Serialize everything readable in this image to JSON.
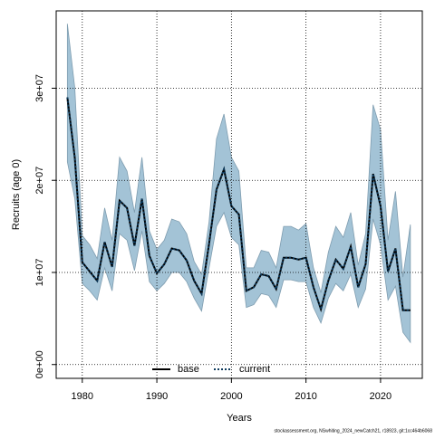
{
  "chart_data": {
    "type": "line",
    "xlabel": "Years",
    "ylabel": "Recruits (age 0)",
    "footnote": "stockassessment.org, NSwhiting_2024_newCatch21, r18923, git:1cc464b6068",
    "x": [
      1978,
      1979,
      1980,
      1981,
      1982,
      1983,
      1984,
      1985,
      1986,
      1987,
      1988,
      1989,
      1990,
      1991,
      1992,
      1993,
      1994,
      1995,
      1996,
      1997,
      1998,
      1999,
      2000,
      2001,
      2002,
      2003,
      2004,
      2005,
      2006,
      2007,
      2008,
      2009,
      2010,
      2011,
      2012,
      2013,
      2014,
      2015,
      2016,
      2017,
      2018,
      2019,
      2020,
      2021,
      2022,
      2023,
      2024
    ],
    "series": [
      {
        "name": "base",
        "color": "#000000",
        "dash": false,
        "values": [
          29000000.0,
          22400000.0,
          11100000.0,
          10100000.0,
          9100000.0,
          13300000.0,
          10600000.0,
          17800000.0,
          17000000.0,
          12900000.0,
          18000000.0,
          11800000.0,
          9900000.0,
          10900000.0,
          12600000.0,
          12400000.0,
          11300000.0,
          9100000.0,
          7700000.0,
          13100000.0,
          19000000.0,
          21200000.0,
          17200000.0,
          16300000.0,
          8000000.0,
          8400000.0,
          9800000.0,
          9600000.0,
          8200000.0,
          11600000.0,
          11600000.0,
          11400000.0,
          11600000.0,
          8400000.0,
          6000000.0,
          9100000.0,
          11400000.0,
          10400000.0,
          12800000.0,
          8400000.0,
          10900000.0,
          20700000.0,
          17200000.0,
          10100000.0,
          12600000.0,
          5900000.0,
          5900000.0
        ]
      },
      {
        "name": "current",
        "color": "#0d3a5c",
        "dash": true,
        "values": [
          29000000.0,
          22400000.0,
          11100000.0,
          10100000.0,
          9100000.0,
          13300000.0,
          10600000.0,
          17800000.0,
          17000000.0,
          12900000.0,
          18000000.0,
          11800000.0,
          9900000.0,
          10900000.0,
          12600000.0,
          12400000.0,
          11300000.0,
          9100000.0,
          7700000.0,
          13100000.0,
          19000000.0,
          21200000.0,
          17200000.0,
          16300000.0,
          8000000.0,
          8400000.0,
          9800000.0,
          9600000.0,
          8200000.0,
          11600000.0,
          11600000.0,
          11400000.0,
          11600000.0,
          8400000.0,
          6000000.0,
          9100000.0,
          11400000.0,
          10400000.0,
          12800000.0,
          8400000.0,
          10900000.0,
          20700000.0,
          17200000.0,
          10100000.0,
          12600000.0,
          5900000.0,
          5900000.0
        ]
      }
    ],
    "band": {
      "color": "#a3c3d6",
      "upper": [
        37000000.0,
        30000000.0,
        14000000.0,
        13000000.0,
        11500000.0,
        17000000.0,
        13500000.0,
        22500000.0,
        21000000.0,
        16500000.0,
        22500000.0,
        14500000.0,
        12500000.0,
        13500000.0,
        15800000.0,
        15500000.0,
        14200000.0,
        11200000.0,
        9800000.0,
        15500000.0,
        24500000.0,
        27200000.0,
        22500000.0,
        21000000.0,
        10500000.0,
        10500000.0,
        12400000.0,
        12200000.0,
        10500000.0,
        15000000.0,
        15000000.0,
        14600000.0,
        15300000.0,
        10500000.0,
        7800000.0,
        12200000.0,
        15000000.0,
        13800000.0,
        16500000.0,
        10800000.0,
        14200000.0,
        28200000.0,
        25500000.0,
        13500000.0,
        18800000.0,
        9500000.0,
        15200000.0
      ],
      "lower": [
        22000000.0,
        18000000.0,
        8800000.0,
        8000000.0,
        7000000.0,
        10500000.0,
        8000000.0,
        14200000.0,
        13500000.0,
        10200000.0,
        14500000.0,
        9000000.0,
        8000000.0,
        8800000.0,
        10000000.0,
        10000000.0,
        9000000.0,
        7200000.0,
        5800000.0,
        10500000.0,
        15000000.0,
        16500000.0,
        13800000.0,
        13000000.0,
        6200000.0,
        6500000.0,
        7700000.0,
        7500000.0,
        6200000.0,
        9200000.0,
        9200000.0,
        9000000.0,
        9000000.0,
        6200000.0,
        4500000.0,
        7200000.0,
        8800000.0,
        8000000.0,
        9800000.0,
        6200000.0,
        8200000.0,
        15800000.0,
        13000000.0,
        7000000.0,
        8500000.0,
        3500000.0,
        2400000.0
      ]
    },
    "xlim": [
      1976.5,
      2025.6
    ],
    "ylim": [
      -1500000.0,
      38400000.0
    ],
    "xticks": [
      1980,
      1990,
      2000,
      2010,
      2020
    ],
    "yticks": [
      {
        "value": 0,
        "label": "0e+00"
      },
      {
        "value": 10000000.0,
        "label": "1e+07"
      },
      {
        "value": 20000000.0,
        "label": "2e+07"
      },
      {
        "value": 30000000.0,
        "label": "3e+07"
      }
    ],
    "grid": true,
    "legend": "bottom"
  }
}
